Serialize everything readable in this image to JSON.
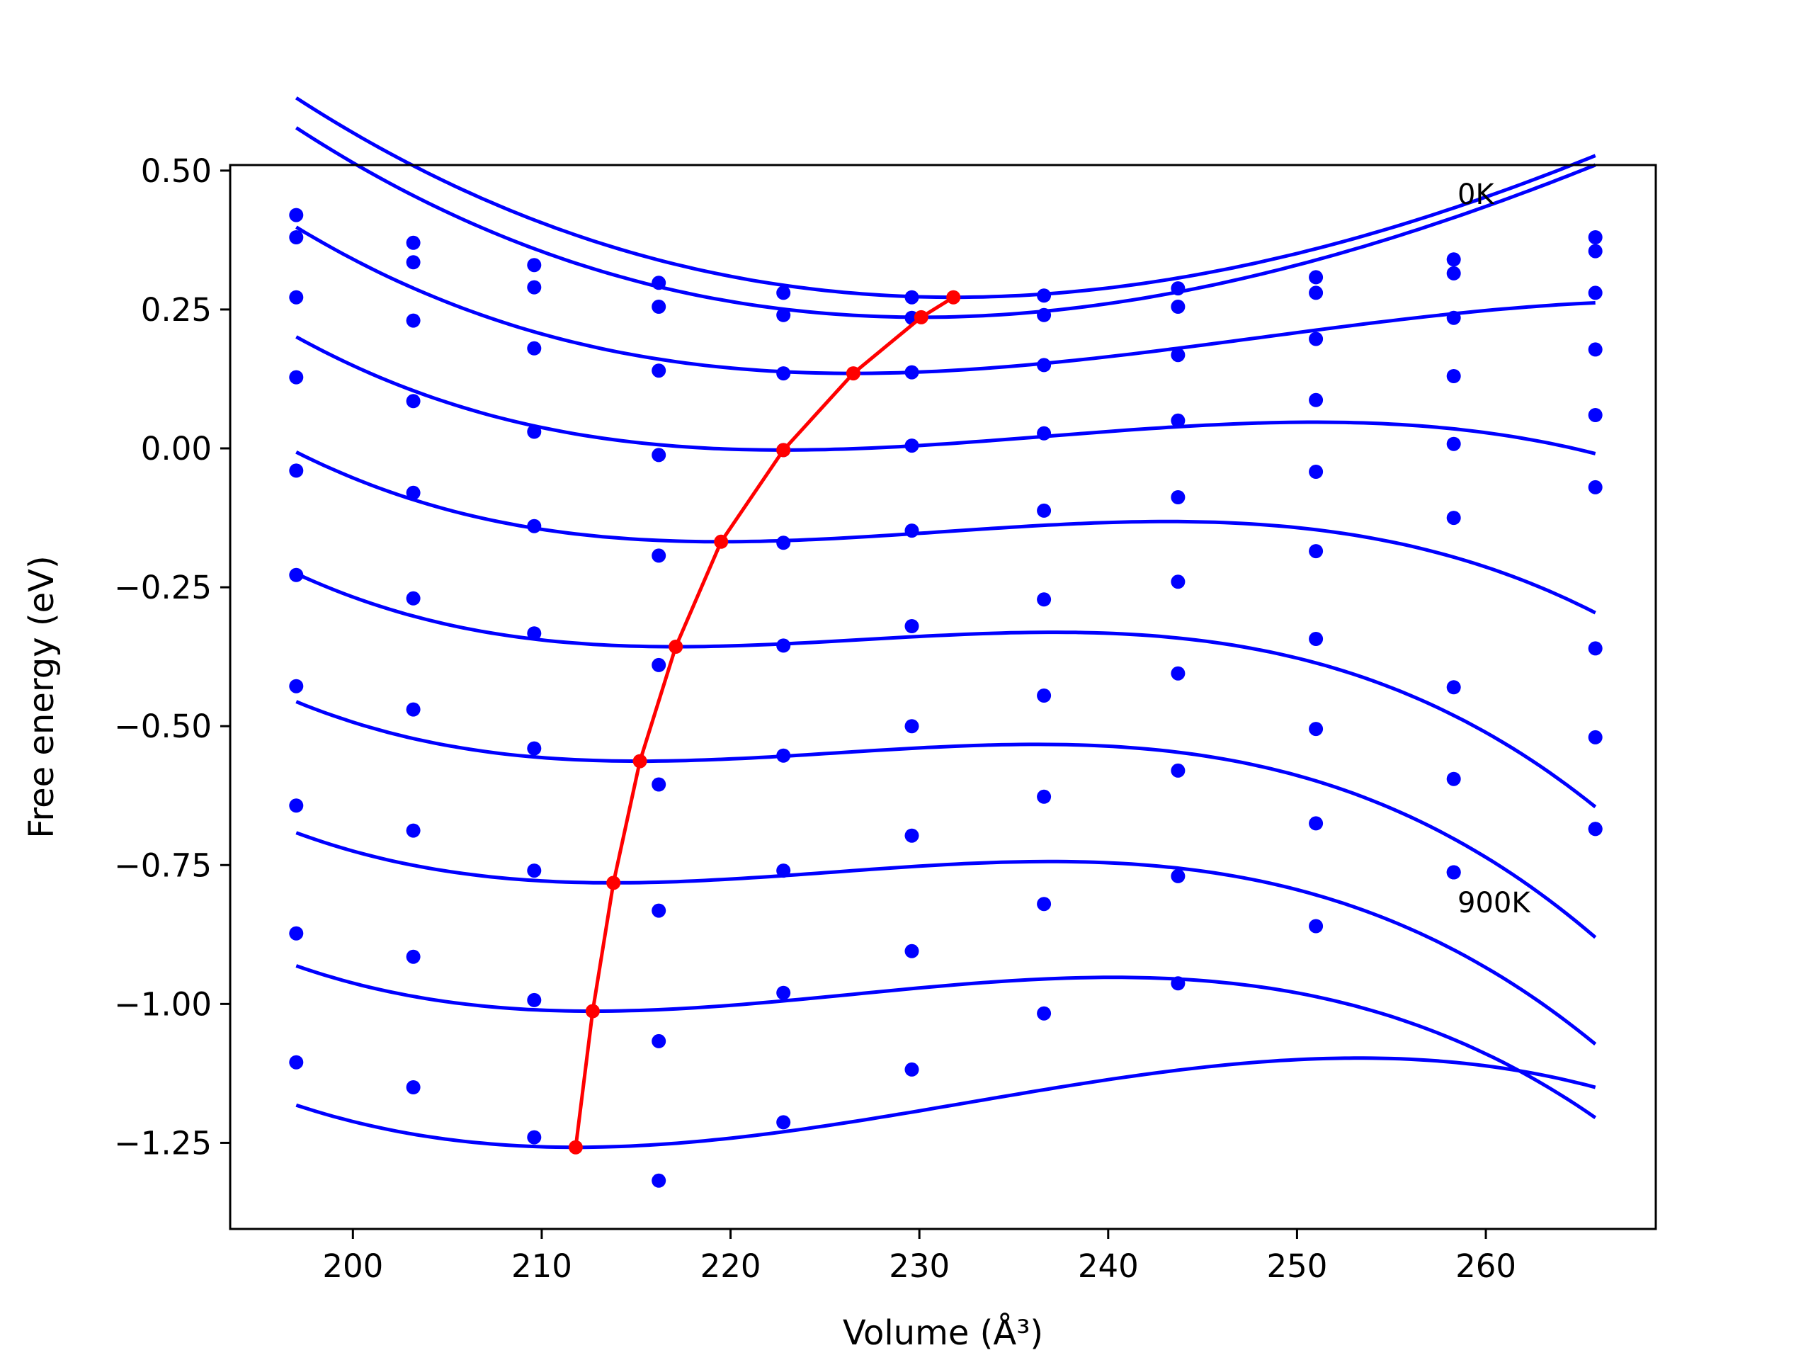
{
  "chart_data": {
    "type": "line",
    "title": "",
    "xlabel": "Volume (Å³)",
    "ylabel": "Free energy (eV)",
    "xlim": [
      193.5,
      269
    ],
    "ylim": [
      -1.405,
      0.51
    ],
    "xticks": [
      200,
      210,
      220,
      230,
      240,
      250,
      260
    ],
    "yticks": [
      0.5,
      0.25,
      0.0,
      -0.25,
      -0.5,
      -0.75,
      -1.0,
      -1.25
    ],
    "ytick_labels": [
      "0.50",
      "0.25",
      "0.00",
      "−0.25",
      "−0.50",
      "−0.75",
      "−1.00",
      "−1.25"
    ],
    "grid": false,
    "legend": "none",
    "annotations": [
      {
        "text": "0K",
        "x": 258.5,
        "y": 0.44
      },
      {
        "text": "900K",
        "x": 258.5,
        "y": -0.835
      }
    ],
    "volumes": [
      197.0,
      203.2,
      209.6,
      216.2,
      222.8,
      229.6,
      236.6,
      243.7,
      251.0,
      258.3,
      265.8
    ],
    "curve_series": [
      {
        "fit": {
          "v0": 231.8,
          "e0": 0.272,
          "k1": 0.000258,
          "k2": 1.1e-06
        },
        "points": [
          0.42,
          0.37,
          0.33,
          0.298,
          0.28,
          0.272,
          0.275,
          0.288,
          0.308,
          0.34,
          0.38
        ]
      },
      {
        "fit": {
          "v0": 230.1,
          "e0": 0.236,
          "k1": 0.000265,
          "k2": 1.4e-06
        },
        "points": [
          0.38,
          0.335,
          0.29,
          0.255,
          0.24,
          0.235,
          0.24,
          0.255,
          0.28,
          0.315,
          0.355
        ]
      },
      {
        "fit": {
          "v0": 226.5,
          "e0": 0.135,
          "k1": 0.000208,
          "k2": 3.2e-06
        },
        "points": [
          0.272,
          0.23,
          0.18,
          0.14,
          0.135,
          0.137,
          0.15,
          0.168,
          0.197,
          0.235,
          0.28
        ]
      },
      {
        "fit": {
          "v0": 222.8,
          "e0": -0.003,
          "k1": 0.00019,
          "k2": 4.5e-06
        },
        "points": [
          0.128,
          0.085,
          0.03,
          -0.012,
          -0.003,
          0.005,
          0.027,
          0.05,
          0.087,
          0.13,
          0.178
        ]
      },
      {
        "fit": {
          "v0": 219.5,
          "e0": -0.168,
          "k1": 0.000195,
          "k2": 5.5e-06
        },
        "points": [
          -0.04,
          -0.08,
          -0.14,
          -0.193,
          -0.17,
          -0.148,
          -0.112,
          -0.088,
          -0.042,
          0.008,
          0.06
        ]
      },
      {
        "fit": {
          "v0": 217.1,
          "e0": -0.357,
          "k1": 0.000195,
          "k2": 6.5e-06
        },
        "points": [
          -0.228,
          -0.27,
          -0.333,
          -0.39,
          -0.355,
          -0.32,
          -0.272,
          -0.24,
          -0.185,
          -0.125,
          -0.07
        ]
      },
      {
        "fit": {
          "v0": 215.2,
          "e0": -0.563,
          "k1": 0.000205,
          "k2": 6.5e-06
        },
        "points": [
          -0.428,
          -0.47,
          -0.54,
          -0.605,
          -0.553,
          -0.5,
          -0.445,
          -0.405,
          -0.343,
          -0.43,
          -0.36
        ]
      },
      {
        "fit": {
          "v0": 213.8,
          "e0": -0.782,
          "k1": 0.000215,
          "k2": 6.2e-06
        },
        "points": [
          -0.643,
          -0.688,
          -0.76,
          -0.832,
          -0.76,
          -0.697,
          -0.627,
          -0.58,
          -0.505,
          -0.595,
          -0.52
        ]
      },
      {
        "fit": {
          "v0": 212.7,
          "e0": -1.013,
          "k1": 0.00024,
          "k2": 5.8e-06
        },
        "points": [
          -0.873,
          -0.915,
          -0.993,
          -1.067,
          -0.98,
          -0.905,
          -0.82,
          -0.77,
          -0.675,
          -0.763,
          -0.685
        ]
      },
      {
        "fit": {
          "v0": 211.8,
          "e0": -1.258,
          "k1": 0.00028,
          "k2": 4.5e-06
        },
        "points": [
          -1.105,
          -1.15,
          -1.24,
          -1.318,
          -1.213,
          -1.118,
          -1.017,
          -0.963,
          -0.86,
          -0.763,
          -0.685
        ]
      }
    ],
    "minima_series": {
      "color": "#ff0000",
      "x": [
        231.8,
        230.1,
        226.5,
        222.8,
        219.5,
        217.1,
        215.2,
        213.8,
        212.7,
        211.8
      ],
      "y": [
        0.272,
        0.236,
        0.135,
        -0.003,
        -0.168,
        -0.357,
        -0.563,
        -0.782,
        -1.013,
        -1.258
      ]
    },
    "colors": {
      "curves": "#0000ff",
      "minima": "#ff0000"
    }
  }
}
